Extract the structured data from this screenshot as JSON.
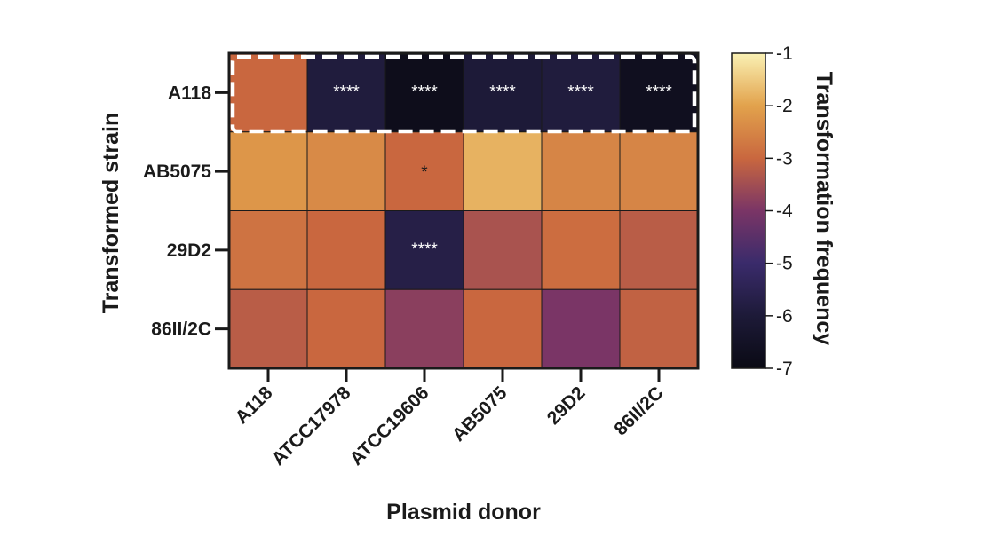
{
  "chart_data": {
    "type": "heatmap",
    "xlabel": "Plasmid donor",
    "ylabel": "Transformed strain",
    "x_categories": [
      "A118",
      "ATCC17978",
      "ATCC19606",
      "AB5075",
      "29D2",
      "86II/2C"
    ],
    "y_categories": [
      "A118",
      "AB5075",
      "29D2",
      "86II/2C"
    ],
    "values": [
      [
        -3.0,
        -5.9,
        -6.8,
        -6.0,
        -5.9,
        -6.7
      ],
      [
        -2.2,
        -2.4,
        -3.0,
        -1.8,
        -2.5,
        -2.5
      ],
      [
        -2.8,
        -3.0,
        -5.7,
        -3.4,
        -2.9,
        -3.2
      ],
      [
        -3.2,
        -3.0,
        -3.8,
        -3.0,
        -4.0,
        -3.1
      ]
    ],
    "annotations": [
      [
        "",
        "****",
        "****",
        "****",
        "****",
        "****"
      ],
      [
        "",
        "",
        "*",
        "",
        "",
        ""
      ],
      [
        "",
        "",
        "****",
        "",
        "",
        ""
      ],
      [
        "",
        "",
        "",
        "",
        "",
        ""
      ]
    ],
    "highlighted_row": "A118",
    "colorbar": {
      "title": "Transformation frequency",
      "range": [
        -7,
        -1
      ],
      "ticks": [
        "-1",
        "-2",
        "-3",
        "-4",
        "-5",
        "-6",
        "-7"
      ],
      "colors": [
        "#faf1b4",
        "#e2a24c",
        "#c9673f",
        "#7a3566",
        "#3a2b6b",
        "#1d1a38",
        "#0a0a14"
      ]
    }
  }
}
